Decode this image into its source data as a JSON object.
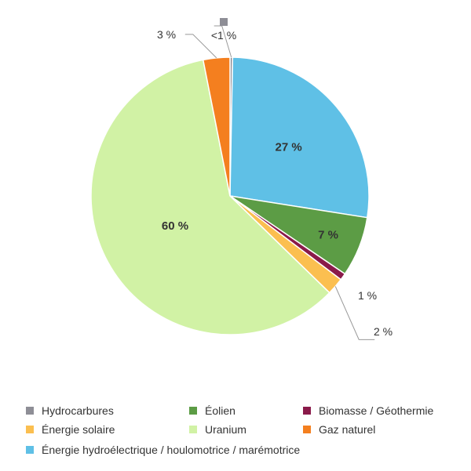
{
  "chart_data": {
    "type": "pie",
    "slices": [
      {
        "name": "Hydrocarbures",
        "value": 0.3,
        "label": "<1 %",
        "color": "#8e8e96"
      },
      {
        "name": "Énergie hydroélectrique / houlomotrice / marémotrice",
        "value": 27.2,
        "label": "27 %",
        "color": "#5fc0e6"
      },
      {
        "name": "Éolien",
        "value": 7.0,
        "label": "7 %",
        "color": "#5c9c45"
      },
      {
        "name": "Biomasse / Géothermie",
        "value": 0.8,
        "label": "1 %",
        "color": "#8a1a4a"
      },
      {
        "name": "Énergie solaire",
        "value": 2.0,
        "label": "2 %",
        "color": "#fbbf50"
      },
      {
        "name": "Uranium",
        "value": 59.6,
        "label": "60 %",
        "color": "#d1f2a5"
      },
      {
        "name": "Gaz naturel",
        "value": 3.1,
        "label": "3 %",
        "color": "#f47f1f"
      }
    ],
    "legend_placement": "bottom"
  },
  "legend": [
    {
      "label": "Hydrocarbures",
      "color": "#8e8e96"
    },
    {
      "label": "Éolien",
      "color": "#5c9c45"
    },
    {
      "label": "Biomasse / Géothermie",
      "color": "#8a1a4a"
    },
    {
      "label": "Énergie solaire",
      "color": "#fbbf50"
    },
    {
      "label": "Uranium",
      "color": "#d1f2a5"
    },
    {
      "label": "Gaz naturel",
      "color": "#f47f1f"
    },
    {
      "label": "Énergie hydroélectrique / houlomotrice / marémotrice",
      "color": "#5fc0e6"
    }
  ]
}
